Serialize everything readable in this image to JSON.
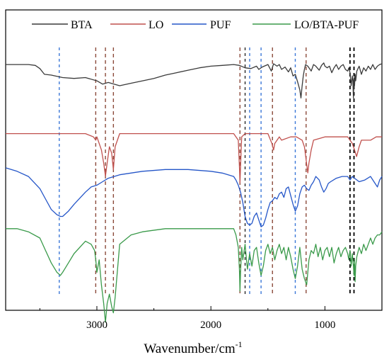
{
  "chart_data": {
    "type": "line",
    "xlabel": "Wavenumber/cm",
    "xlabel_superscript": "-1",
    "xlim": [
      3800,
      500
    ],
    "x_reversed": true,
    "xticks": [
      3000,
      2000,
      1000
    ],
    "y_ticks_shown": false,
    "grid": false,
    "legend_position": "top",
    "series": [
      {
        "name": "BTA",
        "color": "#3a3a3a",
        "x": [
          3800,
          3600,
          3540,
          3500,
          3460,
          3400,
          3300,
          3200,
          3100,
          3000,
          2950,
          2900,
          2850,
          2800,
          2700,
          2600,
          2500,
          2400,
          2300,
          2200,
          2100,
          2000,
          1900,
          1800,
          1750,
          1700,
          1650,
          1600,
          1580,
          1550,
          1500,
          1470,
          1450,
          1420,
          1400,
          1380,
          1350,
          1320,
          1300,
          1280,
          1260,
          1240,
          1220,
          1210,
          1200,
          1190,
          1180,
          1170,
          1150,
          1120,
          1100,
          1080,
          1050,
          1030,
          1010,
          1000,
          980,
          960,
          940,
          920,
          900,
          880,
          860,
          840,
          820,
          800,
          790,
          780,
          770,
          760,
          755,
          750,
          748,
          745,
          740,
          735,
          730,
          720,
          700,
          680,
          660,
          640,
          620,
          600,
          580,
          560,
          540,
          520,
          500
        ],
        "y": [
          0.86,
          0.86,
          0.85,
          0.81,
          0.74,
          0.73,
          0.7,
          0.69,
          0.7,
          0.66,
          0.62,
          0.64,
          0.62,
          0.6,
          0.63,
          0.66,
          0.69,
          0.73,
          0.76,
          0.79,
          0.82,
          0.84,
          0.85,
          0.86,
          0.85,
          0.82,
          0.81,
          0.84,
          0.8,
          0.83,
          0.86,
          0.78,
          0.87,
          0.84,
          0.86,
          0.8,
          0.83,
          0.77,
          0.82,
          0.72,
          0.74,
          0.65,
          0.55,
          0.45,
          0.6,
          0.72,
          0.8,
          0.86,
          0.84,
          0.78,
          0.86,
          0.84,
          0.79,
          0.85,
          0.88,
          0.84,
          0.82,
          0.84,
          0.76,
          0.82,
          0.86,
          0.8,
          0.84,
          0.86,
          0.8,
          0.78,
          0.82,
          0.76,
          0.6,
          0.72,
          0.66,
          0.45,
          0.55,
          0.7,
          0.6,
          0.74,
          0.66,
          0.78,
          0.84,
          0.74,
          0.82,
          0.78,
          0.84,
          0.8,
          0.86,
          0.8,
          0.84,
          0.86,
          0.87
        ]
      },
      {
        "name": "LO",
        "color": "#c0504d",
        "x": [
          3800,
          3400,
          3100,
          3030,
          3010,
          3000,
          2960,
          2940,
          2925,
          2910,
          2890,
          2870,
          2855,
          2840,
          2800,
          2600,
          2400,
          2200,
          2000,
          1800,
          1760,
          1750,
          1745,
          1740,
          1730,
          1700,
          1600,
          1500,
          1465,
          1450,
          1440,
          1400,
          1380,
          1300,
          1250,
          1200,
          1180,
          1165,
          1150,
          1140,
          1120,
          1100,
          1000,
          900,
          800,
          760,
          740,
          722,
          700,
          680,
          650,
          600,
          550,
          500
        ],
        "y": [
          0.49,
          0.49,
          0.49,
          0.48,
          0.47,
          0.48,
          0.44,
          0.4,
          0.36,
          0.4,
          0.45,
          0.43,
          0.38,
          0.45,
          0.49,
          0.49,
          0.49,
          0.49,
          0.49,
          0.49,
          0.47,
          0.39,
          0.34,
          0.39,
          0.48,
          0.49,
          0.49,
          0.49,
          0.46,
          0.44,
          0.46,
          0.48,
          0.47,
          0.48,
          0.48,
          0.47,
          0.45,
          0.41,
          0.37,
          0.4,
          0.44,
          0.47,
          0.48,
          0.48,
          0.48,
          0.46,
          0.44,
          0.42,
          0.45,
          0.47,
          0.47,
          0.47,
          0.48,
          0.48
        ]
      },
      {
        "name": "PUF",
        "color": "#2556c8",
        "x": [
          3800,
          3700,
          3600,
          3500,
          3450,
          3400,
          3350,
          3320,
          3300,
          3250,
          3200,
          3100,
          3050,
          3000,
          2950,
          2900,
          2800,
          2600,
          2400,
          2200,
          2000,
          1900,
          1800,
          1780,
          1760,
          1740,
          1720,
          1700,
          1680,
          1660,
          1640,
          1620,
          1600,
          1580,
          1560,
          1540,
          1520,
          1500,
          1480,
          1460,
          1440,
          1420,
          1400,
          1380,
          1360,
          1340,
          1320,
          1300,
          1280,
          1260,
          1240,
          1220,
          1200,
          1180,
          1160,
          1140,
          1120,
          1100,
          1080,
          1050,
          1030,
          1010,
          990,
          970,
          950,
          900,
          850,
          800,
          780,
          760,
          740,
          700,
          650,
          600,
          560,
          540,
          520,
          500
        ],
        "y": [
          0.38,
          0.36,
          0.33,
          0.26,
          0.2,
          0.14,
          0.11,
          0.1,
          0.1,
          0.13,
          0.17,
          0.24,
          0.27,
          0.28,
          0.3,
          0.32,
          0.34,
          0.36,
          0.37,
          0.37,
          0.36,
          0.35,
          0.33,
          0.31,
          0.28,
          0.24,
          0.18,
          0.1,
          0.06,
          0.05,
          0.06,
          0.1,
          0.12,
          0.08,
          0.04,
          0.05,
          0.09,
          0.14,
          0.18,
          0.19,
          0.21,
          0.2,
          0.23,
          0.24,
          0.21,
          0.26,
          0.27,
          0.22,
          0.17,
          0.13,
          0.16,
          0.23,
          0.27,
          0.28,
          0.26,
          0.25,
          0.28,
          0.3,
          0.33,
          0.31,
          0.27,
          0.24,
          0.26,
          0.29,
          0.3,
          0.32,
          0.33,
          0.33,
          0.31,
          0.33,
          0.32,
          0.3,
          0.31,
          0.33,
          0.29,
          0.27,
          0.31,
          0.33
        ]
      },
      {
        "name": "LO/BTA-PUF",
        "color": "#3a9a4a",
        "x": [
          3800,
          3700,
          3600,
          3500,
          3450,
          3400,
          3350,
          3320,
          3300,
          3250,
          3200,
          3100,
          3050,
          3020,
          3010,
          3000,
          2980,
          2960,
          2940,
          2925,
          2910,
          2890,
          2870,
          2855,
          2840,
          2800,
          2700,
          2600,
          2400,
          2200,
          2000,
          1800,
          1780,
          1760,
          1750,
          1745,
          1740,
          1730,
          1720,
          1700,
          1680,
          1660,
          1640,
          1620,
          1600,
          1580,
          1560,
          1540,
          1520,
          1500,
          1480,
          1460,
          1440,
          1420,
          1400,
          1380,
          1360,
          1340,
          1320,
          1300,
          1280,
          1260,
          1240,
          1220,
          1200,
          1180,
          1160,
          1140,
          1120,
          1100,
          1080,
          1060,
          1040,
          1020,
          1000,
          980,
          960,
          940,
          920,
          900,
          880,
          860,
          840,
          820,
          800,
          790,
          780,
          770,
          760,
          750,
          745,
          740,
          735,
          730,
          720,
          700,
          680,
          660,
          640,
          620,
          600,
          580,
          560,
          540,
          520,
          500
        ],
        "y": [
          0.18,
          0.18,
          0.17,
          0.15,
          0.11,
          0.07,
          0.04,
          0.03,
          0.04,
          0.07,
          0.1,
          0.14,
          0.13,
          0.11,
          0.08,
          0.04,
          0.08,
          0.0,
          -0.06,
          -0.12,
          -0.06,
          -0.03,
          -0.07,
          -0.09,
          -0.04,
          0.13,
          0.16,
          0.17,
          0.18,
          0.18,
          0.18,
          0.18,
          0.16,
          0.12,
          0.05,
          -0.02,
          0.04,
          0.12,
          0.08,
          0.13,
          0.05,
          0.1,
          0.06,
          0.11,
          0.12,
          0.07,
          0.03,
          0.06,
          0.11,
          0.13,
          0.1,
          0.12,
          0.08,
          0.11,
          0.13,
          0.1,
          0.12,
          0.08,
          0.12,
          0.09,
          0.05,
          0.02,
          0.06,
          0.12,
          0.05,
          0.02,
          0.0,
          0.08,
          0.11,
          0.1,
          0.13,
          0.09,
          0.12,
          0.08,
          0.11,
          0.12,
          0.09,
          0.12,
          0.07,
          0.1,
          0.12,
          0.09,
          0.11,
          0.12,
          0.1,
          0.08,
          0.11,
          0.06,
          0.1,
          0.06,
          0.03,
          0.08,
          0.01,
          0.06,
          0.09,
          0.12,
          0.1,
          0.13,
          0.11,
          0.13,
          0.15,
          0.13,
          0.15,
          0.16,
          0.16,
          0.17
        ]
      }
    ],
    "reference_lines": [
      {
        "x": 3330,
        "color": "#3c78d8",
        "dash": "4,4"
      },
      {
        "x": 3010,
        "color": "#8b4a3a",
        "dash": "5,4"
      },
      {
        "x": 2925,
        "color": "#8b4a3a",
        "dash": "5,4"
      },
      {
        "x": 2855,
        "color": "#8b4a3a",
        "dash": "5,4"
      },
      {
        "x": 1745,
        "color": "#8b4a3a",
        "dash": "5,4"
      },
      {
        "x": 1700,
        "color": "#2a2a2a",
        "dash": "4,4"
      },
      {
        "x": 1660,
        "color": "#3c78d8",
        "dash": "4,4"
      },
      {
        "x": 1560,
        "color": "#3c78d8",
        "dash": "4,4"
      },
      {
        "x": 1460,
        "color": "#8b4a3a",
        "dash": "5,4"
      },
      {
        "x": 1260,
        "color": "#3c78d8",
        "dash": "4,4"
      },
      {
        "x": 1165,
        "color": "#8b4a3a",
        "dash": "5,4"
      },
      {
        "x": 780,
        "color": "#000000",
        "dash": "5,4"
      },
      {
        "x": 745,
        "color": "#000000",
        "dash": "5,4"
      }
    ]
  }
}
